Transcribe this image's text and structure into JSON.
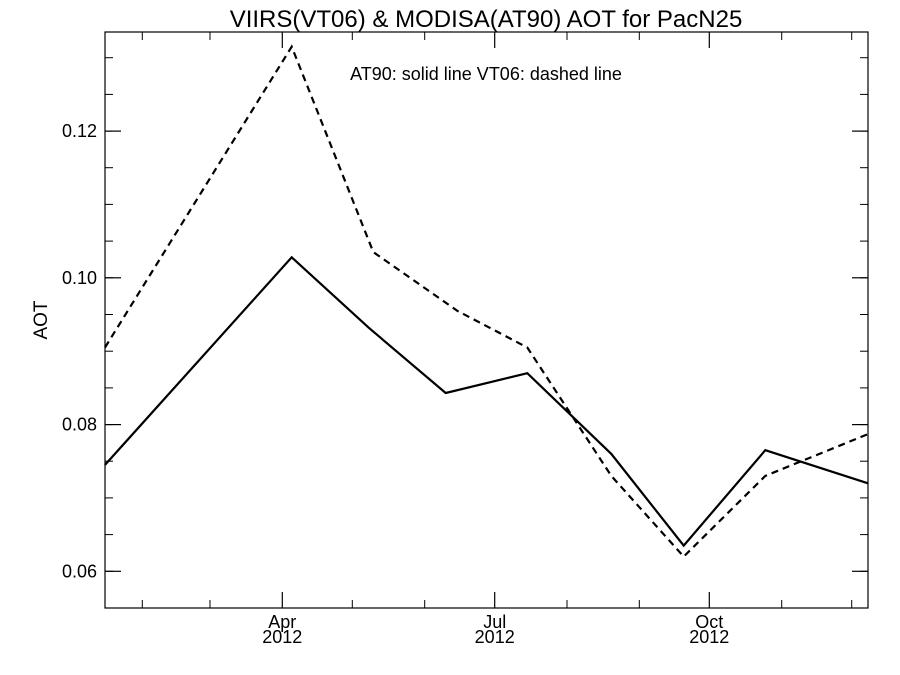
{
  "chart_data": {
    "type": "line",
    "title": "VIIRS(VT06) & MODISA(AT90)  AOT for PacN25",
    "annotation": "AT90: solid line   VT06: dashed line",
    "ylabel": "AOT",
    "xlabel": "",
    "x_range": [
      "2012-01-16",
      "2012-12-08"
    ],
    "ylim": [
      0.055,
      0.1335
    ],
    "y_ticks": [
      {
        "value": 0.06,
        "label": "0.06"
      },
      {
        "value": 0.08,
        "label": "0.08"
      },
      {
        "value": 0.1,
        "label": "0.10"
      },
      {
        "value": 0.12,
        "label": "0.12"
      }
    ],
    "y_minor_step": 0.005,
    "x_ticks": [
      {
        "date": "2012-04-01",
        "month": "Apr",
        "year": "2012"
      },
      {
        "date": "2012-07-01",
        "month": "Jul",
        "year": "2012"
      },
      {
        "date": "2012-10-01",
        "month": "Oct",
        "year": "2012"
      }
    ],
    "x_minor_dates": [
      "2012-02-01",
      "2012-03-01",
      "2012-05-01",
      "2012-06-01",
      "2012-08-01",
      "2012-09-01",
      "2012-11-01",
      "2012-12-01"
    ],
    "grid": false,
    "series": [
      {
        "name": "AT90",
        "style": "solid",
        "color": "#000000",
        "x": [
          "2012-01-16",
          "2012-04-05",
          "2012-05-08",
          "2012-06-10",
          "2012-07-15",
          "2012-08-20",
          "2012-09-20",
          "2012-10-25",
          "2012-12-08"
        ],
        "y": [
          0.0745,
          0.1028,
          0.0932,
          0.0843,
          0.087,
          0.076,
          0.0635,
          0.0765,
          0.072
        ]
      },
      {
        "name": "VT06",
        "style": "dashed",
        "color": "#000000",
        "x": [
          "2012-01-16",
          "2012-04-05",
          "2012-05-10",
          "2012-06-15",
          "2012-07-15",
          "2012-08-20",
          "2012-09-20",
          "2012-10-25",
          "2012-12-08"
        ],
        "y": [
          0.0905,
          0.1315,
          0.1035,
          0.0955,
          0.0905,
          0.073,
          0.062,
          0.073,
          0.0787
        ]
      }
    ]
  }
}
